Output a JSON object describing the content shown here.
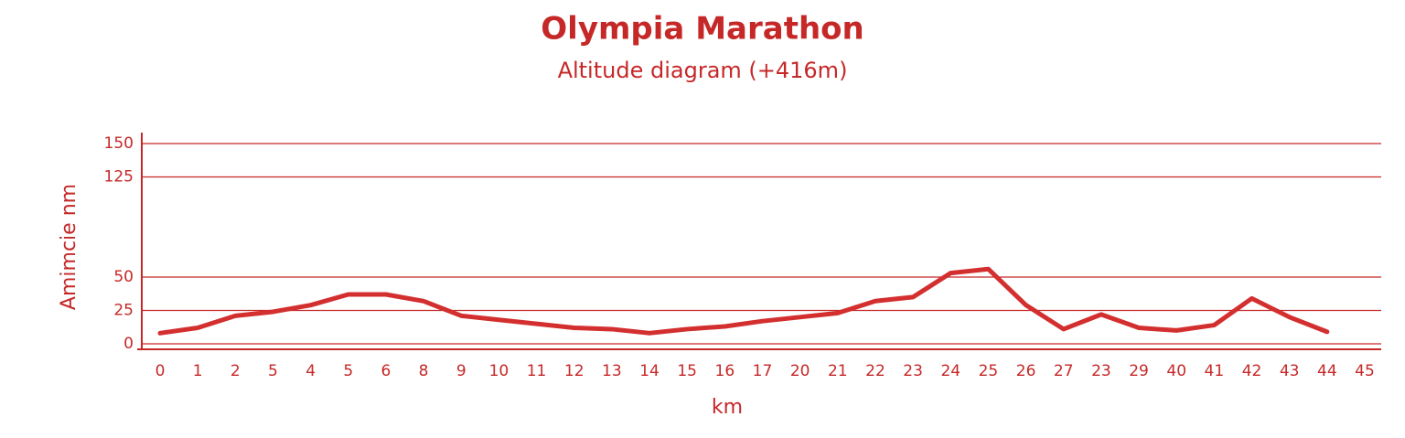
{
  "chart_data": {
    "type": "line",
    "title": "Olympia Marathon",
    "subtitle": "Altitude diagram (+416m)",
    "y_label": "Amimcie nm",
    "x_label": "km",
    "categories": [
      "0",
      "1",
      "2",
      "5",
      "4",
      "5",
      "6",
      "8",
      "9",
      "10",
      "11",
      "12",
      "13",
      "14",
      "15",
      "16",
      "17",
      "20",
      "21",
      "22",
      "23",
      "24",
      "25",
      "26",
      "27",
      "23",
      "29",
      "40",
      "41",
      "42",
      "43",
      "44",
      "45"
    ],
    "series": [
      {
        "name": "Altitude",
        "color": "#d32f2f",
        "values": [
          8,
          12,
          21,
          24,
          29,
          37,
          37,
          32,
          21,
          18,
          15,
          12,
          11,
          8,
          11,
          13,
          17,
          20,
          23,
          32,
          35,
          53,
          56,
          29,
          11,
          22,
          12,
          10,
          14,
          34,
          20,
          9,
          null
        ]
      }
    ],
    "ylim": [
      0,
      150
    ],
    "yticks": [
      0,
      25,
      50,
      125,
      150
    ],
    "grid": true
  }
}
